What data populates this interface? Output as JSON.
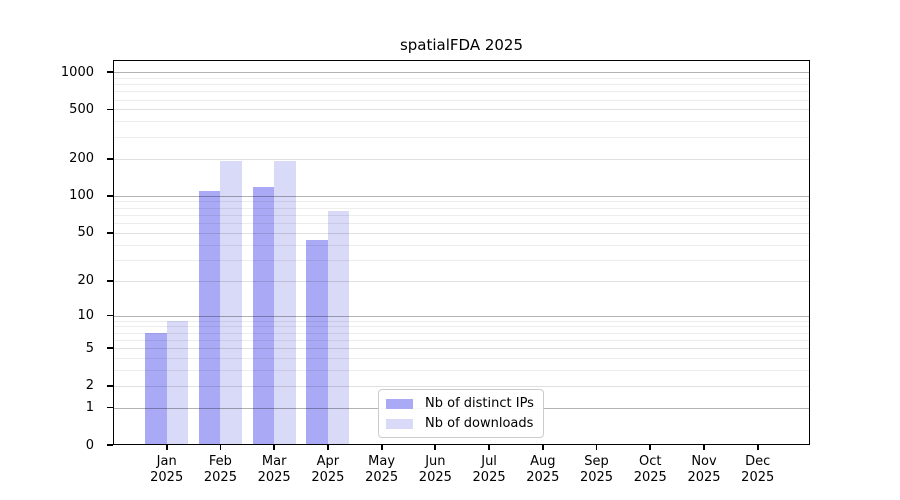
{
  "chart_data": {
    "type": "bar",
    "title": "spatialFDA 2025",
    "categories": [
      "Jan",
      "Feb",
      "Mar",
      "Apr",
      "May",
      "Jun",
      "Jul",
      "Aug",
      "Sep",
      "Oct",
      "Nov",
      "Dec"
    ],
    "category_year": "2025",
    "series": [
      {
        "name": "Nb of distinct IPs",
        "color": "#a9a9f6",
        "values": [
          7,
          110,
          117,
          44,
          0,
          0,
          0,
          0,
          0,
          0,
          0,
          0
        ]
      },
      {
        "name": "Nb of downloads",
        "color": "#d9d9f8",
        "values": [
          9,
          190,
          190,
          76,
          0,
          0,
          0,
          0,
          0,
          0,
          0,
          0
        ]
      }
    ],
    "yscale": "log1p",
    "ylim": [
      0,
      1000
    ],
    "yticks": [
      0,
      1,
      2,
      5,
      10,
      20,
      50,
      100,
      200,
      500,
      1000
    ],
    "ytick_labels": [
      "0",
      "1",
      "2",
      "5",
      "10",
      "20",
      "50",
      "100",
      "200",
      "500",
      "1000"
    ],
    "decade_yticks": [
      1,
      10,
      100,
      1000
    ],
    "minor_yticks": [
      3,
      4,
      6,
      7,
      8,
      9,
      30,
      40,
      60,
      70,
      80,
      90,
      300,
      400,
      600,
      700,
      800,
      900
    ],
    "grid": "horizontal",
    "legend_position": "inside-bottom-center"
  }
}
